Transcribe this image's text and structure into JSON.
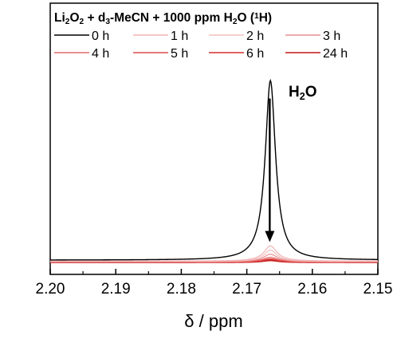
{
  "chart_data": {
    "type": "line",
    "title": {
      "parts": [
        {
          "t": "Li"
        },
        {
          "t": "2",
          "s": "sub"
        },
        {
          "t": "O"
        },
        {
          "t": "2",
          "s": "sub"
        },
        {
          "t": " + d"
        },
        {
          "t": "3",
          "s": "sub"
        },
        {
          "t": "-MeCN + 1000 ppm H"
        },
        {
          "t": "2",
          "s": "sub"
        },
        {
          "t": "O ("
        },
        {
          "t": "1",
          "s": "sup"
        },
        {
          "t": "H)"
        }
      ]
    },
    "xlabel": "δ / ppm",
    "ylabel": "",
    "xlim": [
      2.2,
      2.15
    ],
    "x_reversed": true,
    "ylim": [
      0,
      1
    ],
    "x_ticks": [
      2.2,
      2.19,
      2.18,
      2.17,
      2.16,
      2.15
    ],
    "x_tick_labels": [
      "2.20",
      "2.19",
      "2.18",
      "2.17",
      "2.16",
      "2.15"
    ],
    "y_axis_visible": false,
    "grid": false,
    "legend_placement": "top",
    "peak_label": {
      "parts": [
        {
          "t": "H"
        },
        {
          "t": "2",
          "s": "sub"
        },
        {
          "t": "O"
        }
      ]
    },
    "arrow": {
      "x": 2.1665,
      "from_y": 0.88,
      "to_y": 0.12,
      "direction": "down"
    },
    "peak_center": 2.1664,
    "series": [
      {
        "name": "0 h",
        "color": "#000000",
        "width": 1.4,
        "baseline": 0.025,
        "height": 0.95,
        "hwhm": 0.00095
      },
      {
        "name": "1 h",
        "color": "#f2b3b3",
        "width": 1.2,
        "baseline": 0.02,
        "height": 0.08,
        "hwhm": 0.0012
      },
      {
        "name": "2 h",
        "color": "#f0c0c0",
        "width": 1.2,
        "baseline": 0.018,
        "height": 0.06,
        "hwhm": 0.0012
      },
      {
        "name": "3 h",
        "color": "#ec8f8f",
        "width": 1.2,
        "baseline": 0.016,
        "height": 0.04,
        "hwhm": 0.0013
      },
      {
        "name": "4 h",
        "color": "#e46a6a",
        "width": 1.2,
        "baseline": 0.015,
        "height": 0.025,
        "hwhm": 0.0014
      },
      {
        "name": "5 h",
        "color": "#dd4b4b",
        "width": 1.2,
        "baseline": 0.014,
        "height": 0.018,
        "hwhm": 0.0014
      },
      {
        "name": "6 h",
        "color": "#d42f2f",
        "width": 1.3,
        "baseline": 0.013,
        "height": 0.014,
        "hwhm": 0.0015
      },
      {
        "name": "24 h",
        "color": "#c41616",
        "width": 1.4,
        "baseline": 0.012,
        "height": 0.01,
        "hwhm": 0.0015
      }
    ],
    "legend_rows": [
      [
        "0 h",
        "1 h",
        "2 h",
        "3 h"
      ],
      [
        "4 h",
        "5 h",
        "6 h",
        "24 h"
      ]
    ]
  }
}
